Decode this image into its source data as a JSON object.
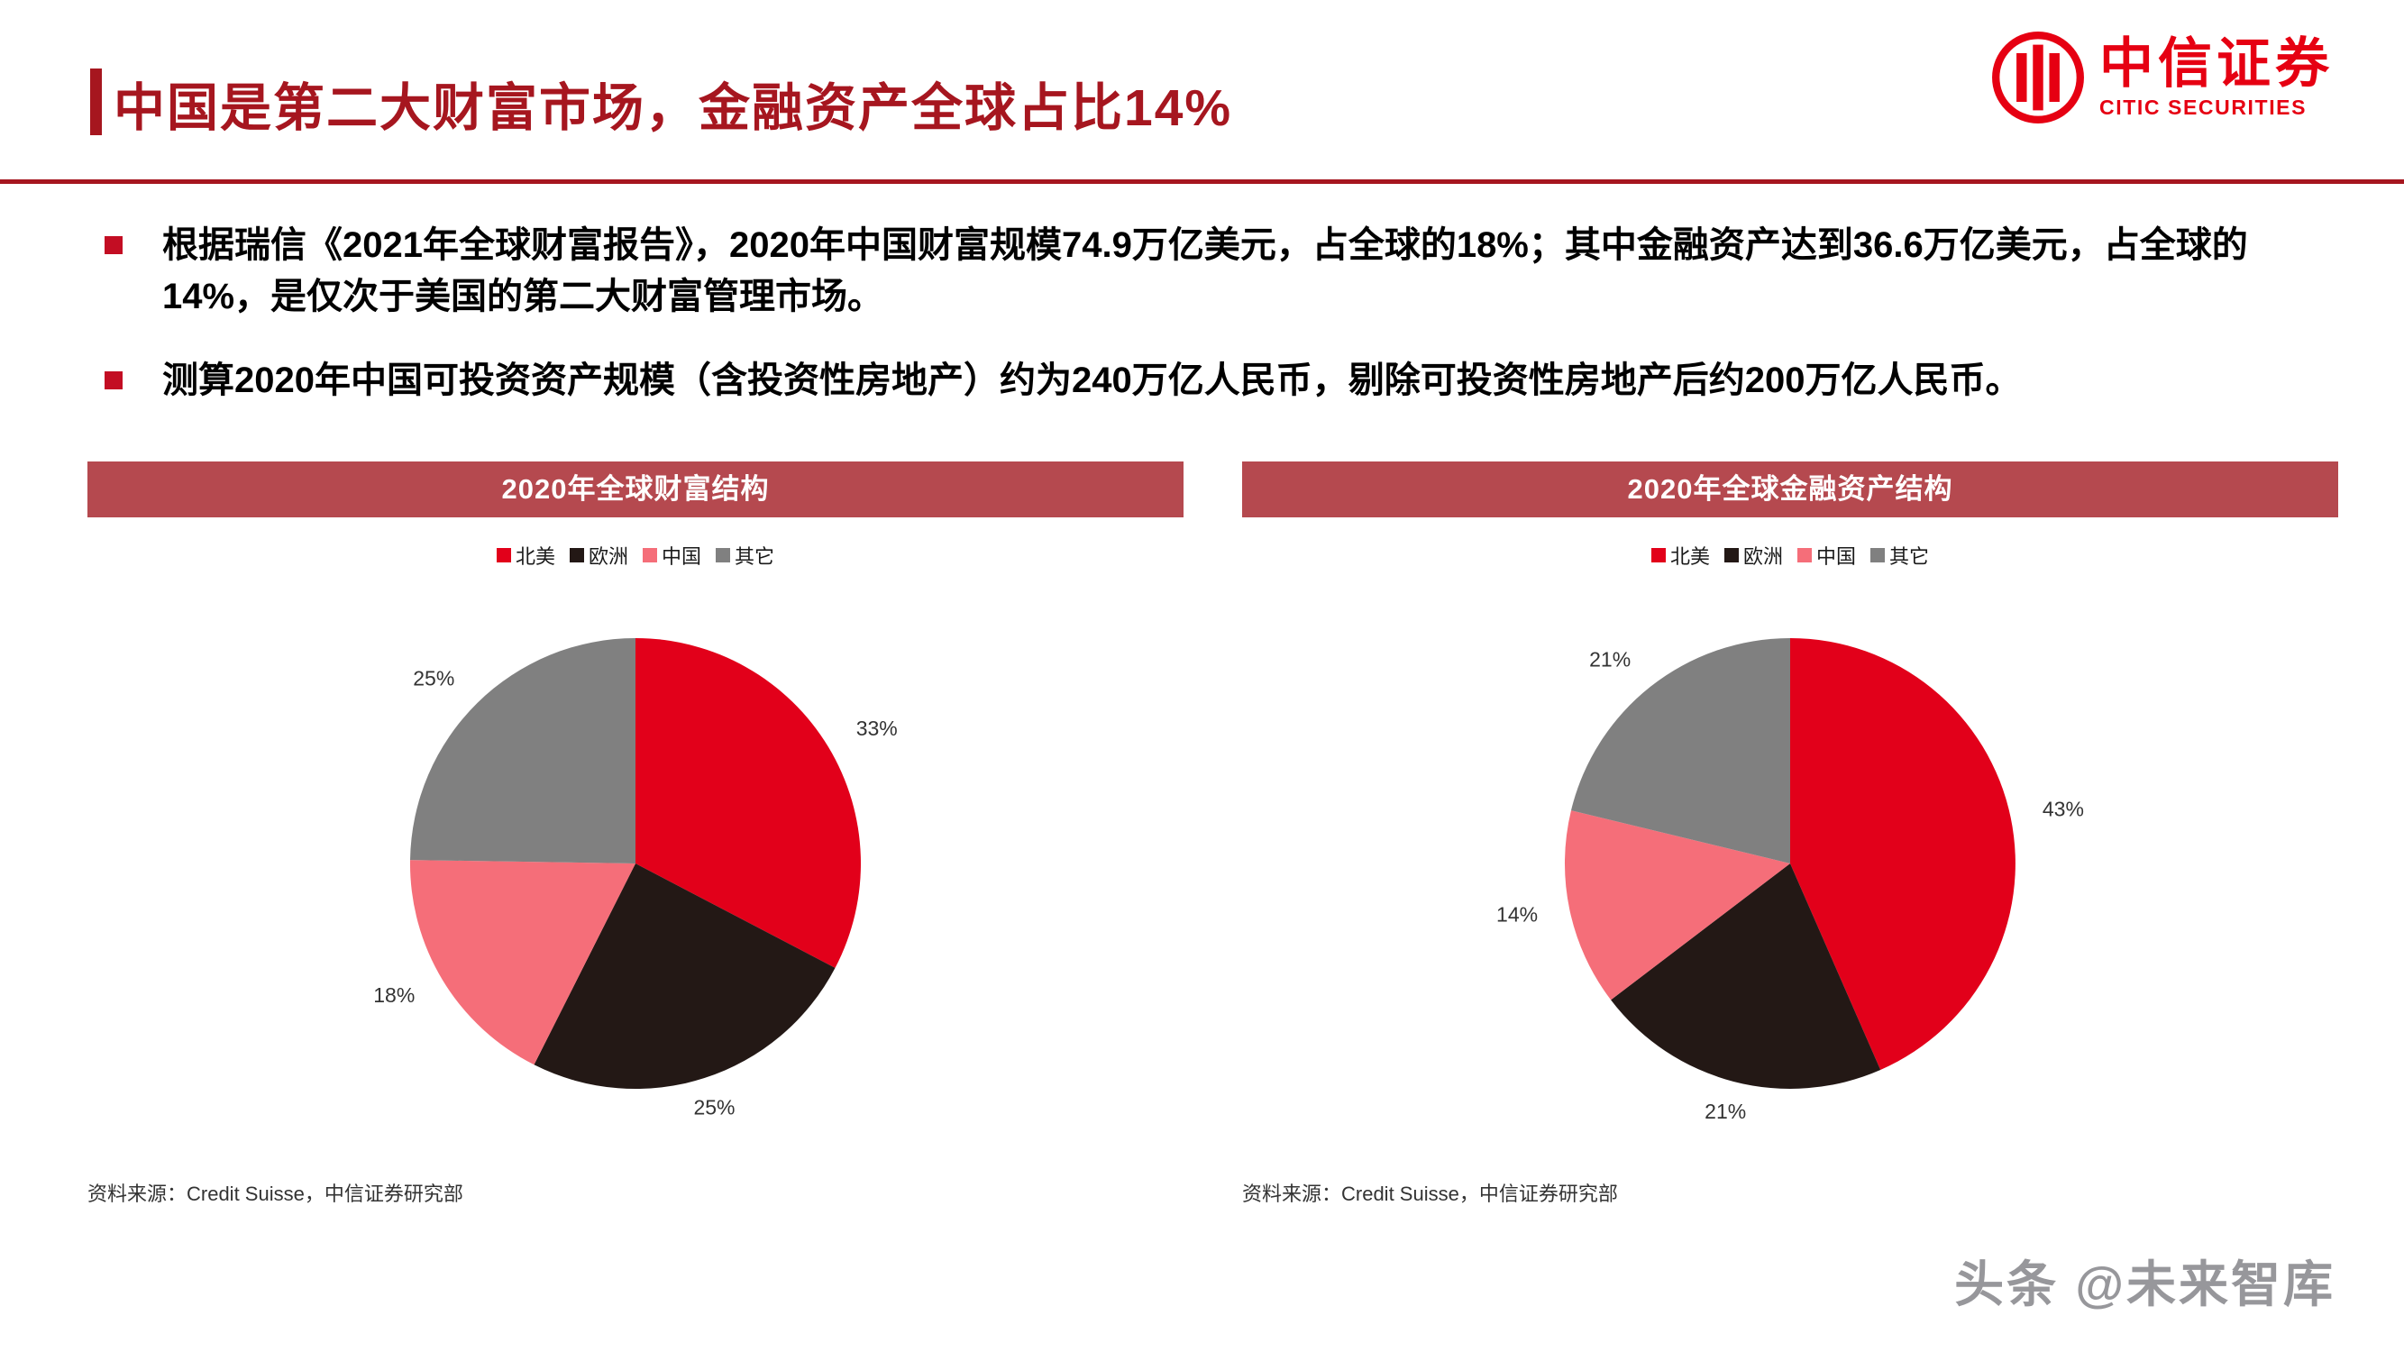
{
  "header": {
    "title": "中国是第二大财富市场，金融资产全球占比14%"
  },
  "logo": {
    "name_cn": "中信证券",
    "name_en": "CITIC SECURITIES"
  },
  "bullets": [
    "根据瑞信《2021年全球财富报告》，2020年中国财富规模74.9万亿美元，占全球的18%；其中金融资产达到36.6万亿美元，占全球的14%，是仅次于美国的第二大财富管理市场。",
    "测算2020年中国可投资资产规模（含投资性房地产）约为240万亿人民币，剔除可投资性房地产后约200万亿人民币。"
  ],
  "colors": {
    "accent_red": "#a6161f",
    "panel_header_red": "#b5494f",
    "logo_red": "#e60012",
    "bullet_marker_red": "#c30d23"
  },
  "chart_data": [
    {
      "type": "pie",
      "title": "2020年全球财富结构",
      "categories": [
        "北美",
        "欧洲",
        "中国",
        "其它"
      ],
      "values": [
        33,
        25,
        18,
        25
      ],
      "labels": [
        "33%",
        "25%",
        "18%",
        "25%"
      ],
      "colors": [
        "#e2001a",
        "#231815",
        "#f56e79",
        "#808080"
      ],
      "legend_position": "top",
      "start_angle_deg": 0,
      "direction": "clockwise",
      "source": "资料来源：Credit Suisse，中信证券研究部"
    },
    {
      "type": "pie",
      "title": "2020年全球金融资产结构",
      "categories": [
        "北美",
        "欧洲",
        "中国",
        "其它"
      ],
      "values": [
        43,
        21,
        14,
        21
      ],
      "labels": [
        "43%",
        "21%",
        "14%",
        "21%"
      ],
      "colors": [
        "#e2001a",
        "#231815",
        "#f56e79",
        "#808080"
      ],
      "legend_position": "top",
      "start_angle_deg": 0,
      "direction": "clockwise",
      "source": "资料来源：Credit Suisse，中信证券研究部"
    }
  ],
  "watermark": "头条 @未来智库"
}
